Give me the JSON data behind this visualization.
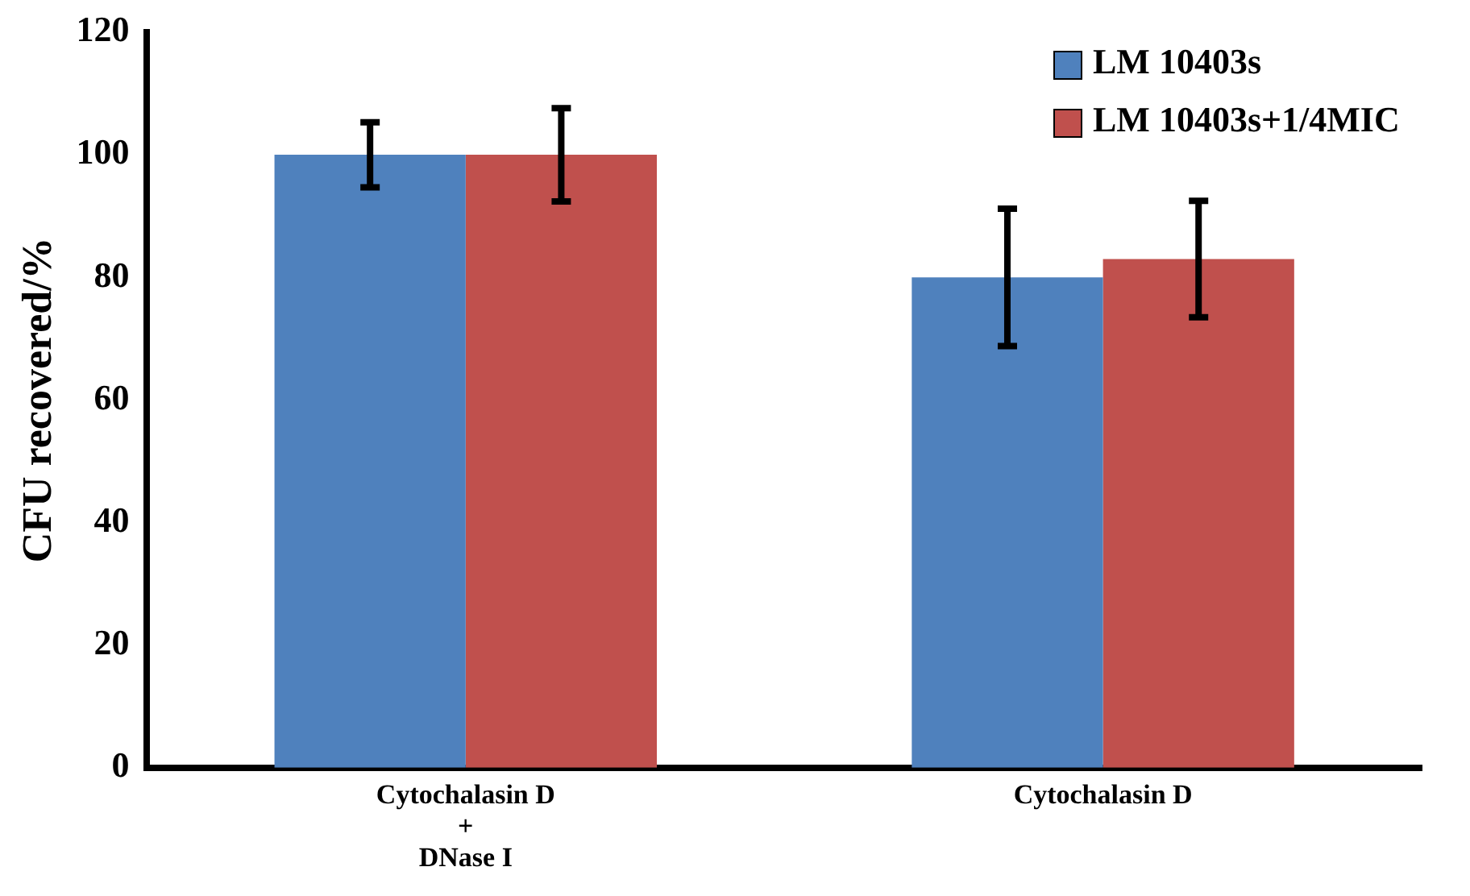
{
  "chart_data": {
    "type": "bar",
    "ylabel": "CFU recovered/%",
    "categories": [
      "Cytochalasin D\n+\nDNase I",
      "Cytochalasin D"
    ],
    "series": [
      {
        "name": "LM 10403s",
        "color": "#4f81bd",
        "values": [
          100,
          80
        ],
        "errors": [
          5.3,
          11.2
        ]
      },
      {
        "name": "LM 10403s+1/4MIC",
        "color": "#c0504d",
        "values": [
          100,
          83
        ],
        "errors": [
          7.6,
          9.5
        ]
      }
    ],
    "ylim": [
      0,
      120
    ],
    "yticks": [
      0,
      20,
      40,
      60,
      80,
      100,
      120
    ],
    "grid": false,
    "legend": "top right"
  }
}
